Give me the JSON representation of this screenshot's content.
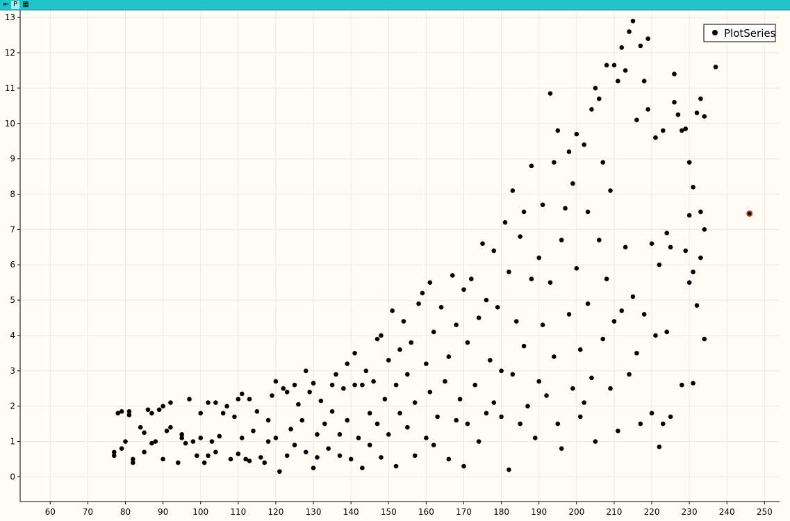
{
  "toolbar": {
    "buttons": [
      {
        "name": "pin-icon",
        "glyph": "⇤"
      },
      {
        "name": "p-button",
        "glyph": "P"
      },
      {
        "name": "grid-icon",
        "glyph": "▦"
      }
    ]
  },
  "colors": {
    "background": "#fffcf5",
    "point": "#000000",
    "highlight": "#cc3311",
    "grid": "#ece9e2",
    "titlebar": "#1ec4c8"
  },
  "chart_data": {
    "type": "scatter",
    "title": "",
    "xlabel": "",
    "ylabel": "",
    "xlim": [
      52,
      254
    ],
    "ylim": [
      -0.7,
      13.2
    ],
    "x_ticks": [
      60,
      70,
      80,
      90,
      100,
      110,
      120,
      130,
      140,
      150,
      160,
      170,
      180,
      190,
      200,
      210,
      220,
      230,
      240,
      250
    ],
    "y_ticks": [
      0,
      1,
      2,
      3,
      4,
      5,
      6,
      7,
      8,
      9,
      10,
      11,
      12,
      13
    ],
    "grid": true,
    "legend": {
      "placement": "top-right",
      "entries": [
        "PlotSeries"
      ]
    },
    "highlight_point": {
      "x": 246,
      "y": 7.45
    },
    "series": [
      {
        "name": "PlotSeries",
        "points": [
          [
            77,
            0.6
          ],
          [
            77,
            0.7
          ],
          [
            78,
            1.8
          ],
          [
            79,
            1.85
          ],
          [
            79,
            0.8
          ],
          [
            80,
            1.0
          ],
          [
            81,
            1.85
          ],
          [
            81,
            1.75
          ],
          [
            82,
            0.4
          ],
          [
            82,
            0.5
          ],
          [
            84,
            1.4
          ],
          [
            85,
            0.7
          ],
          [
            85,
            1.25
          ],
          [
            86,
            1.9
          ],
          [
            87,
            1.8
          ],
          [
            87,
            0.95
          ],
          [
            88,
            1.0
          ],
          [
            89,
            1.9
          ],
          [
            90,
            2.0
          ],
          [
            90,
            0.5
          ],
          [
            91,
            1.3
          ],
          [
            92,
            2.1
          ],
          [
            92,
            1.4
          ],
          [
            94,
            0.4
          ],
          [
            95,
            1.1
          ],
          [
            95,
            1.2
          ],
          [
            96,
            0.95
          ],
          [
            97,
            2.2
          ],
          [
            98,
            1.0
          ],
          [
            99,
            0.6
          ],
          [
            100,
            1.8
          ],
          [
            100,
            1.1
          ],
          [
            101,
            0.4
          ],
          [
            102,
            2.1
          ],
          [
            102,
            0.6
          ],
          [
            103,
            1.0
          ],
          [
            104,
            2.1
          ],
          [
            104,
            0.7
          ],
          [
            105,
            1.15
          ],
          [
            106,
            1.8
          ],
          [
            107,
            2.0
          ],
          [
            108,
            0.5
          ],
          [
            109,
            1.7
          ],
          [
            110,
            2.2
          ],
          [
            110,
            0.65
          ],
          [
            111,
            2.35
          ],
          [
            111,
            1.1
          ],
          [
            112,
            0.5
          ],
          [
            113,
            2.2
          ],
          [
            113,
            0.45
          ],
          [
            114,
            1.3
          ],
          [
            115,
            1.85
          ],
          [
            116,
            0.55
          ],
          [
            117,
            0.4
          ],
          [
            118,
            1.6
          ],
          [
            118,
            1.0
          ],
          [
            119,
            2.3
          ],
          [
            120,
            2.7
          ],
          [
            120,
            1.1
          ],
          [
            121,
            0.15
          ],
          [
            122,
            2.5
          ],
          [
            123,
            2.4
          ],
          [
            123,
            0.6
          ],
          [
            124,
            1.35
          ],
          [
            125,
            2.6
          ],
          [
            125,
            0.9
          ],
          [
            126,
            2.05
          ],
          [
            127,
            1.6
          ],
          [
            128,
            3.0
          ],
          [
            128,
            0.7
          ],
          [
            129,
            2.4
          ],
          [
            130,
            2.65
          ],
          [
            130,
            0.25
          ],
          [
            131,
            1.2
          ],
          [
            131,
            0.55
          ],
          [
            132,
            2.15
          ],
          [
            133,
            1.5
          ],
          [
            134,
            0.8
          ],
          [
            135,
            2.6
          ],
          [
            135,
            1.85
          ],
          [
            136,
            2.9
          ],
          [
            137,
            1.2
          ],
          [
            137,
            0.6
          ],
          [
            138,
            2.5
          ],
          [
            139,
            3.2
          ],
          [
            139,
            1.6
          ],
          [
            140,
            0.5
          ],
          [
            141,
            2.6
          ],
          [
            141,
            3.5
          ],
          [
            142,
            1.1
          ],
          [
            143,
            2.6
          ],
          [
            143,
            0.25
          ],
          [
            144,
            3.0
          ],
          [
            145,
            1.8
          ],
          [
            145,
            0.9
          ],
          [
            146,
            2.7
          ],
          [
            147,
            1.5
          ],
          [
            147,
            3.9
          ],
          [
            148,
            4.0
          ],
          [
            148,
            0.55
          ],
          [
            149,
            2.2
          ],
          [
            150,
            3.3
          ],
          [
            150,
            1.2
          ],
          [
            151,
            4.7
          ],
          [
            152,
            2.6
          ],
          [
            152,
            0.3
          ],
          [
            153,
            1.8
          ],
          [
            153,
            3.6
          ],
          [
            154,
            4.4
          ],
          [
            155,
            2.9
          ],
          [
            155,
            1.4
          ],
          [
            156,
            3.8
          ],
          [
            157,
            0.6
          ],
          [
            157,
            2.1
          ],
          [
            158,
            4.9
          ],
          [
            159,
            5.2
          ],
          [
            160,
            3.2
          ],
          [
            160,
            1.1
          ],
          [
            161,
            5.5
          ],
          [
            161,
            2.4
          ],
          [
            162,
            4.1
          ],
          [
            162,
            0.9
          ],
          [
            163,
            1.7
          ],
          [
            164,
            4.8
          ],
          [
            165,
            2.7
          ],
          [
            166,
            3.4
          ],
          [
            166,
            0.5
          ],
          [
            167,
            5.7
          ],
          [
            168,
            1.6
          ],
          [
            168,
            4.3
          ],
          [
            169,
            2.2
          ],
          [
            170,
            5.3
          ],
          [
            170,
            0.3
          ],
          [
            171,
            3.8
          ],
          [
            171,
            1.5
          ],
          [
            172,
            5.6
          ],
          [
            173,
            2.6
          ],
          [
            174,
            4.5
          ],
          [
            174,
            1.0
          ],
          [
            175,
            6.6
          ],
          [
            176,
            5.0
          ],
          [
            176,
            1.8
          ],
          [
            177,
            3.3
          ],
          [
            178,
            6.4
          ],
          [
            178,
            2.1
          ],
          [
            179,
            4.8
          ],
          [
            180,
            1.7
          ],
          [
            180,
            3.0
          ],
          [
            181,
            7.2
          ],
          [
            182,
            0.2
          ],
          [
            182,
            5.8
          ],
          [
            183,
            8.1
          ],
          [
            183,
            2.9
          ],
          [
            184,
            4.4
          ],
          [
            185,
            6.8
          ],
          [
            185,
            1.5
          ],
          [
            186,
            7.5
          ],
          [
            186,
            3.7
          ],
          [
            187,
            2.0
          ],
          [
            188,
            5.6
          ],
          [
            188,
            8.8
          ],
          [
            189,
            1.1
          ],
          [
            190,
            6.2
          ],
          [
            190,
            2.7
          ],
          [
            191,
            7.7
          ],
          [
            191,
            4.3
          ],
          [
            192,
            2.3
          ],
          [
            193,
            10.85
          ],
          [
            193,
            5.5
          ],
          [
            194,
            8.9
          ],
          [
            194,
            3.4
          ],
          [
            195,
            9.8
          ],
          [
            195,
            1.5
          ],
          [
            196,
            0.8
          ],
          [
            196,
            6.7
          ],
          [
            197,
            7.6
          ],
          [
            198,
            9.2
          ],
          [
            198,
            4.6
          ],
          [
            199,
            2.5
          ],
          [
            199,
            8.3
          ],
          [
            200,
            9.7
          ],
          [
            200,
            5.9
          ],
          [
            201,
            3.6
          ],
          [
            201,
            1.7
          ],
          [
            202,
            9.4
          ],
          [
            202,
            2.1
          ],
          [
            203,
            7.5
          ],
          [
            203,
            4.9
          ],
          [
            204,
            10.4
          ],
          [
            204,
            2.8
          ],
          [
            205,
            11.0
          ],
          [
            205,
            1.0
          ],
          [
            206,
            10.7
          ],
          [
            206,
            6.7
          ],
          [
            207,
            8.9
          ],
          [
            207,
            3.9
          ],
          [
            208,
            11.65
          ],
          [
            208,
            5.6
          ],
          [
            209,
            8.1
          ],
          [
            209,
            2.5
          ],
          [
            210,
            11.65
          ],
          [
            210,
            4.4
          ],
          [
            211,
            11.2
          ],
          [
            211,
            1.3
          ],
          [
            212,
            12.15
          ],
          [
            212,
            4.7
          ],
          [
            213,
            11.5
          ],
          [
            213,
            6.5
          ],
          [
            214,
            12.6
          ],
          [
            214,
            2.9
          ],
          [
            215,
            12.9
          ],
          [
            215,
            5.1
          ],
          [
            216,
            10.1
          ],
          [
            216,
            3.5
          ],
          [
            217,
            12.2
          ],
          [
            217,
            1.5
          ],
          [
            218,
            11.2
          ],
          [
            218,
            4.6
          ],
          [
            219,
            10.4
          ],
          [
            219,
            12.4
          ],
          [
            220,
            1.8
          ],
          [
            220,
            6.6
          ],
          [
            221,
            9.6
          ],
          [
            221,
            4.0
          ],
          [
            222,
            0.85
          ],
          [
            222,
            6.0
          ],
          [
            223,
            9.8
          ],
          [
            223,
            1.5
          ],
          [
            224,
            6.9
          ],
          [
            224,
            4.1
          ],
          [
            225,
            1.7
          ],
          [
            225,
            6.5
          ],
          [
            226,
            11.4
          ],
          [
            226,
            10.6
          ],
          [
            227,
            10.25
          ],
          [
            228,
            9.8
          ],
          [
            228,
            2.6
          ],
          [
            229,
            6.4
          ],
          [
            229,
            9.85
          ],
          [
            230,
            8.9
          ],
          [
            230,
            5.5
          ],
          [
            230,
            7.4
          ],
          [
            231,
            2.65
          ],
          [
            231,
            8.2
          ],
          [
            231,
            5.8
          ],
          [
            232,
            4.85
          ],
          [
            232,
            10.3
          ],
          [
            233,
            10.7
          ],
          [
            233,
            6.2
          ],
          [
            233,
            7.5
          ],
          [
            234,
            10.2
          ],
          [
            234,
            3.9
          ],
          [
            234,
            7.0
          ],
          [
            237,
            11.6
          ]
        ]
      }
    ]
  }
}
